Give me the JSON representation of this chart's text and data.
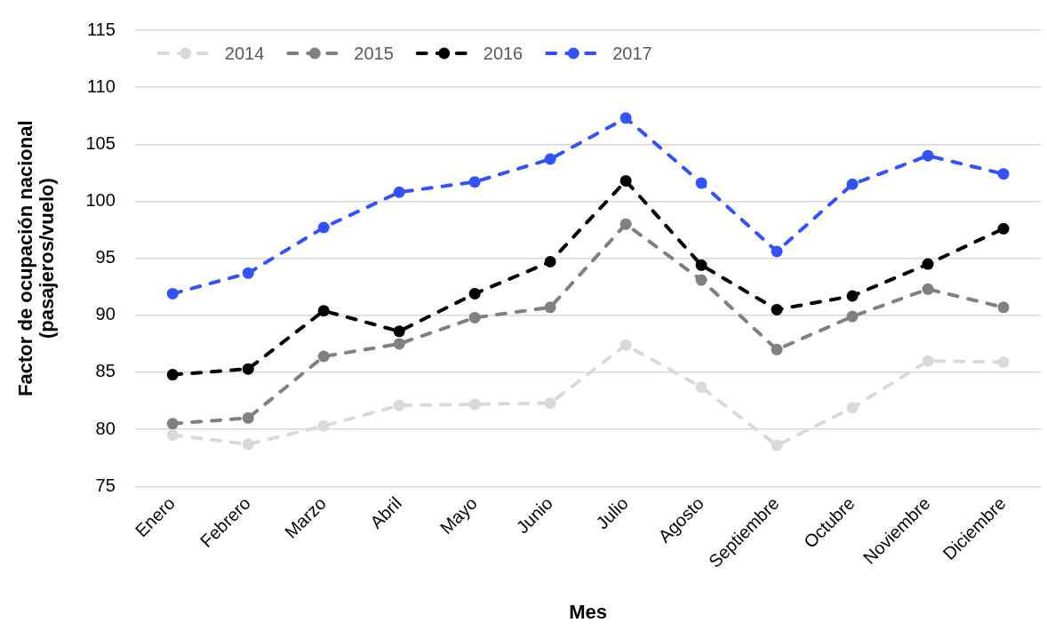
{
  "chart_data": {
    "type": "line",
    "xlabel": "Mes",
    "ylabel": "Factor de ocupación nacional\n(pasajeros/vuelo)",
    "categories": [
      "Enero",
      "Febrero",
      "Marzo",
      "Abril",
      "Mayo",
      "Junio",
      "Julio",
      "Agosto",
      "Septiembre",
      "Octubre",
      "Noviembre",
      "Diciembre"
    ],
    "series": [
      {
        "name": "2014",
        "color": "#d9d9d9",
        "values": [
          79.5,
          78.7,
          80.3,
          82.1,
          82.2,
          82.3,
          87.4,
          83.7,
          78.6,
          81.9,
          86.0,
          85.9
        ]
      },
      {
        "name": "2015",
        "color": "#808080",
        "values": [
          80.5,
          81.0,
          86.4,
          87.5,
          89.8,
          90.7,
          98.0,
          93.1,
          87.0,
          89.9,
          92.3,
          90.7
        ]
      },
      {
        "name": "2016",
        "color": "#000000",
        "values": [
          84.8,
          85.3,
          90.4,
          88.6,
          91.9,
          94.7,
          101.8,
          94.4,
          90.5,
          91.7,
          94.5,
          97.6
        ]
      },
      {
        "name": "2017",
        "color": "#3352ff",
        "values": [
          91.9,
          93.7,
          97.7,
          100.8,
          101.7,
          103.7,
          107.3,
          101.6,
          95.6,
          101.5,
          104.0,
          102.4
        ]
      }
    ],
    "ylim": [
      75,
      115
    ],
    "yticks": [
      75,
      80,
      85,
      90,
      95,
      100,
      105,
      110,
      115
    ],
    "grid": "y",
    "legend": "top left",
    "marker": "circle",
    "line_style": "dashed"
  }
}
